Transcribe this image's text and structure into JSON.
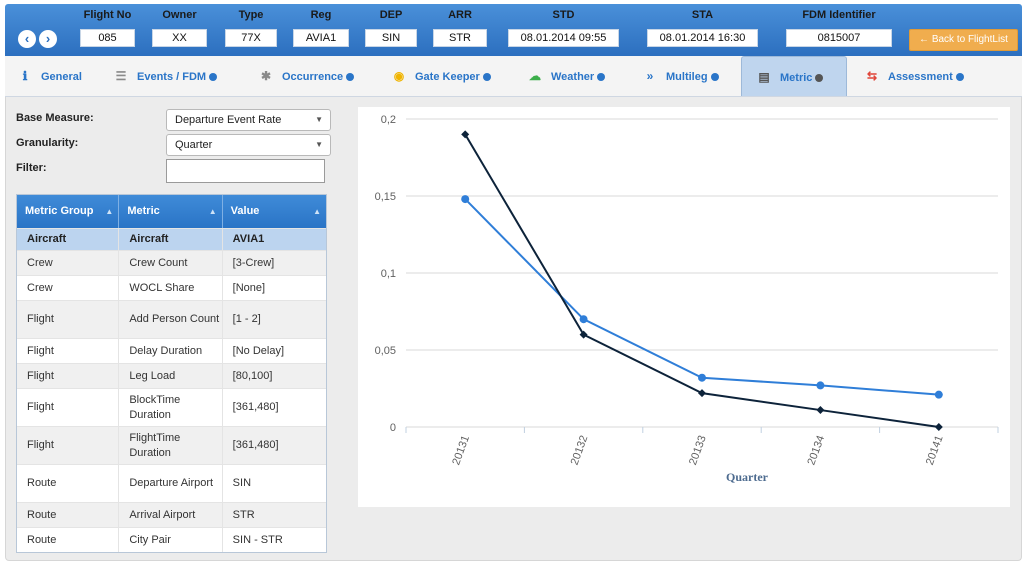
{
  "header": {
    "fields": [
      {
        "label": "Flight No",
        "value": "085"
      },
      {
        "label": "Owner",
        "value": "XX"
      },
      {
        "label": "Type",
        "value": "77X"
      },
      {
        "label": "Reg",
        "value": "AVIA1"
      },
      {
        "label": "DEP",
        "value": "SIN"
      },
      {
        "label": "ARR",
        "value": "STR"
      },
      {
        "label": "STD",
        "value": "08.01.2014 09:55"
      },
      {
        "label": "STA",
        "value": "08.01.2014 16:30"
      },
      {
        "label": "FDM Identifier",
        "value": "0815007"
      }
    ],
    "back_label": "Back to FlightList",
    "back_icon": "arrow-left-icon"
  },
  "tabs": [
    {
      "label": "General",
      "icon": "info-icon",
      "dot": false
    },
    {
      "label": "Events / FDM",
      "icon": "list-icon",
      "dot": true
    },
    {
      "label": "Occurrence",
      "icon": "gear-icon",
      "dot": true
    },
    {
      "label": "Gate Keeper",
      "icon": "lock-icon",
      "dot": true
    },
    {
      "label": "Weather",
      "icon": "cloud-icon",
      "dot": true
    },
    {
      "label": "Multileg",
      "icon": "double-chevron-icon",
      "dot": true
    },
    {
      "label": "Metric",
      "icon": "chart-icon",
      "dot": true,
      "active": true
    },
    {
      "label": "Assessment",
      "icon": "swap-icon",
      "dot": true
    }
  ],
  "filters": {
    "base_measure_label": "Base Measure:",
    "base_measure_value": "Departure Event Rate",
    "granularity_label": "Granularity:",
    "granularity_value": "Quarter",
    "filter_label": "Filter:",
    "filter_value": ""
  },
  "table": {
    "columns": [
      "Metric Group",
      "Metric",
      "Value"
    ],
    "rows": [
      {
        "group": "Aircraft",
        "metric": "Aircraft",
        "value": "AVIA1",
        "selected": true
      },
      {
        "group": "Crew",
        "metric": "Crew Count",
        "value": "[3-Crew]"
      },
      {
        "group": "Crew",
        "metric": "WOCL Share",
        "value": "[None]"
      },
      {
        "group": "Flight",
        "metric": "Add Person Count",
        "value": "[1 - 2]"
      },
      {
        "group": "Flight",
        "metric": "Delay Duration",
        "value": "[No Delay]"
      },
      {
        "group": "Flight",
        "metric": "Leg Load",
        "value": "[80,100]"
      },
      {
        "group": "Flight",
        "metric": "BlockTime Duration",
        "value": "[361,480]"
      },
      {
        "group": "Flight",
        "metric": "FlightTime Duration",
        "value": "[361,480]"
      },
      {
        "group": "Route",
        "metric": "Departure Airport",
        "value": "SIN"
      },
      {
        "group": "Route",
        "metric": "Arrival Airport",
        "value": "STR"
      },
      {
        "group": "Route",
        "metric": "City Pair",
        "value": "SIN - STR"
      }
    ]
  },
  "chart_data": {
    "type": "line",
    "categories": [
      "20131",
      "20132",
      "20133",
      "20134",
      "20141"
    ],
    "series": [
      {
        "color": "#2f7ed8",
        "marker": "circle",
        "values": [
          0.148,
          0.07,
          0.032,
          0.027,
          0.021
        ]
      },
      {
        "color": "#0d233a",
        "marker": "diamond",
        "values": [
          0.19,
          0.06,
          0.022,
          0.011,
          0.0
        ]
      }
    ],
    "xlabel": "Quarter",
    "ylabel": "",
    "ylim": [
      0,
      0.2
    ],
    "yticks": [
      "0",
      "0,05",
      "0,1",
      "0,15",
      "0,2"
    ],
    "grid": true
  }
}
